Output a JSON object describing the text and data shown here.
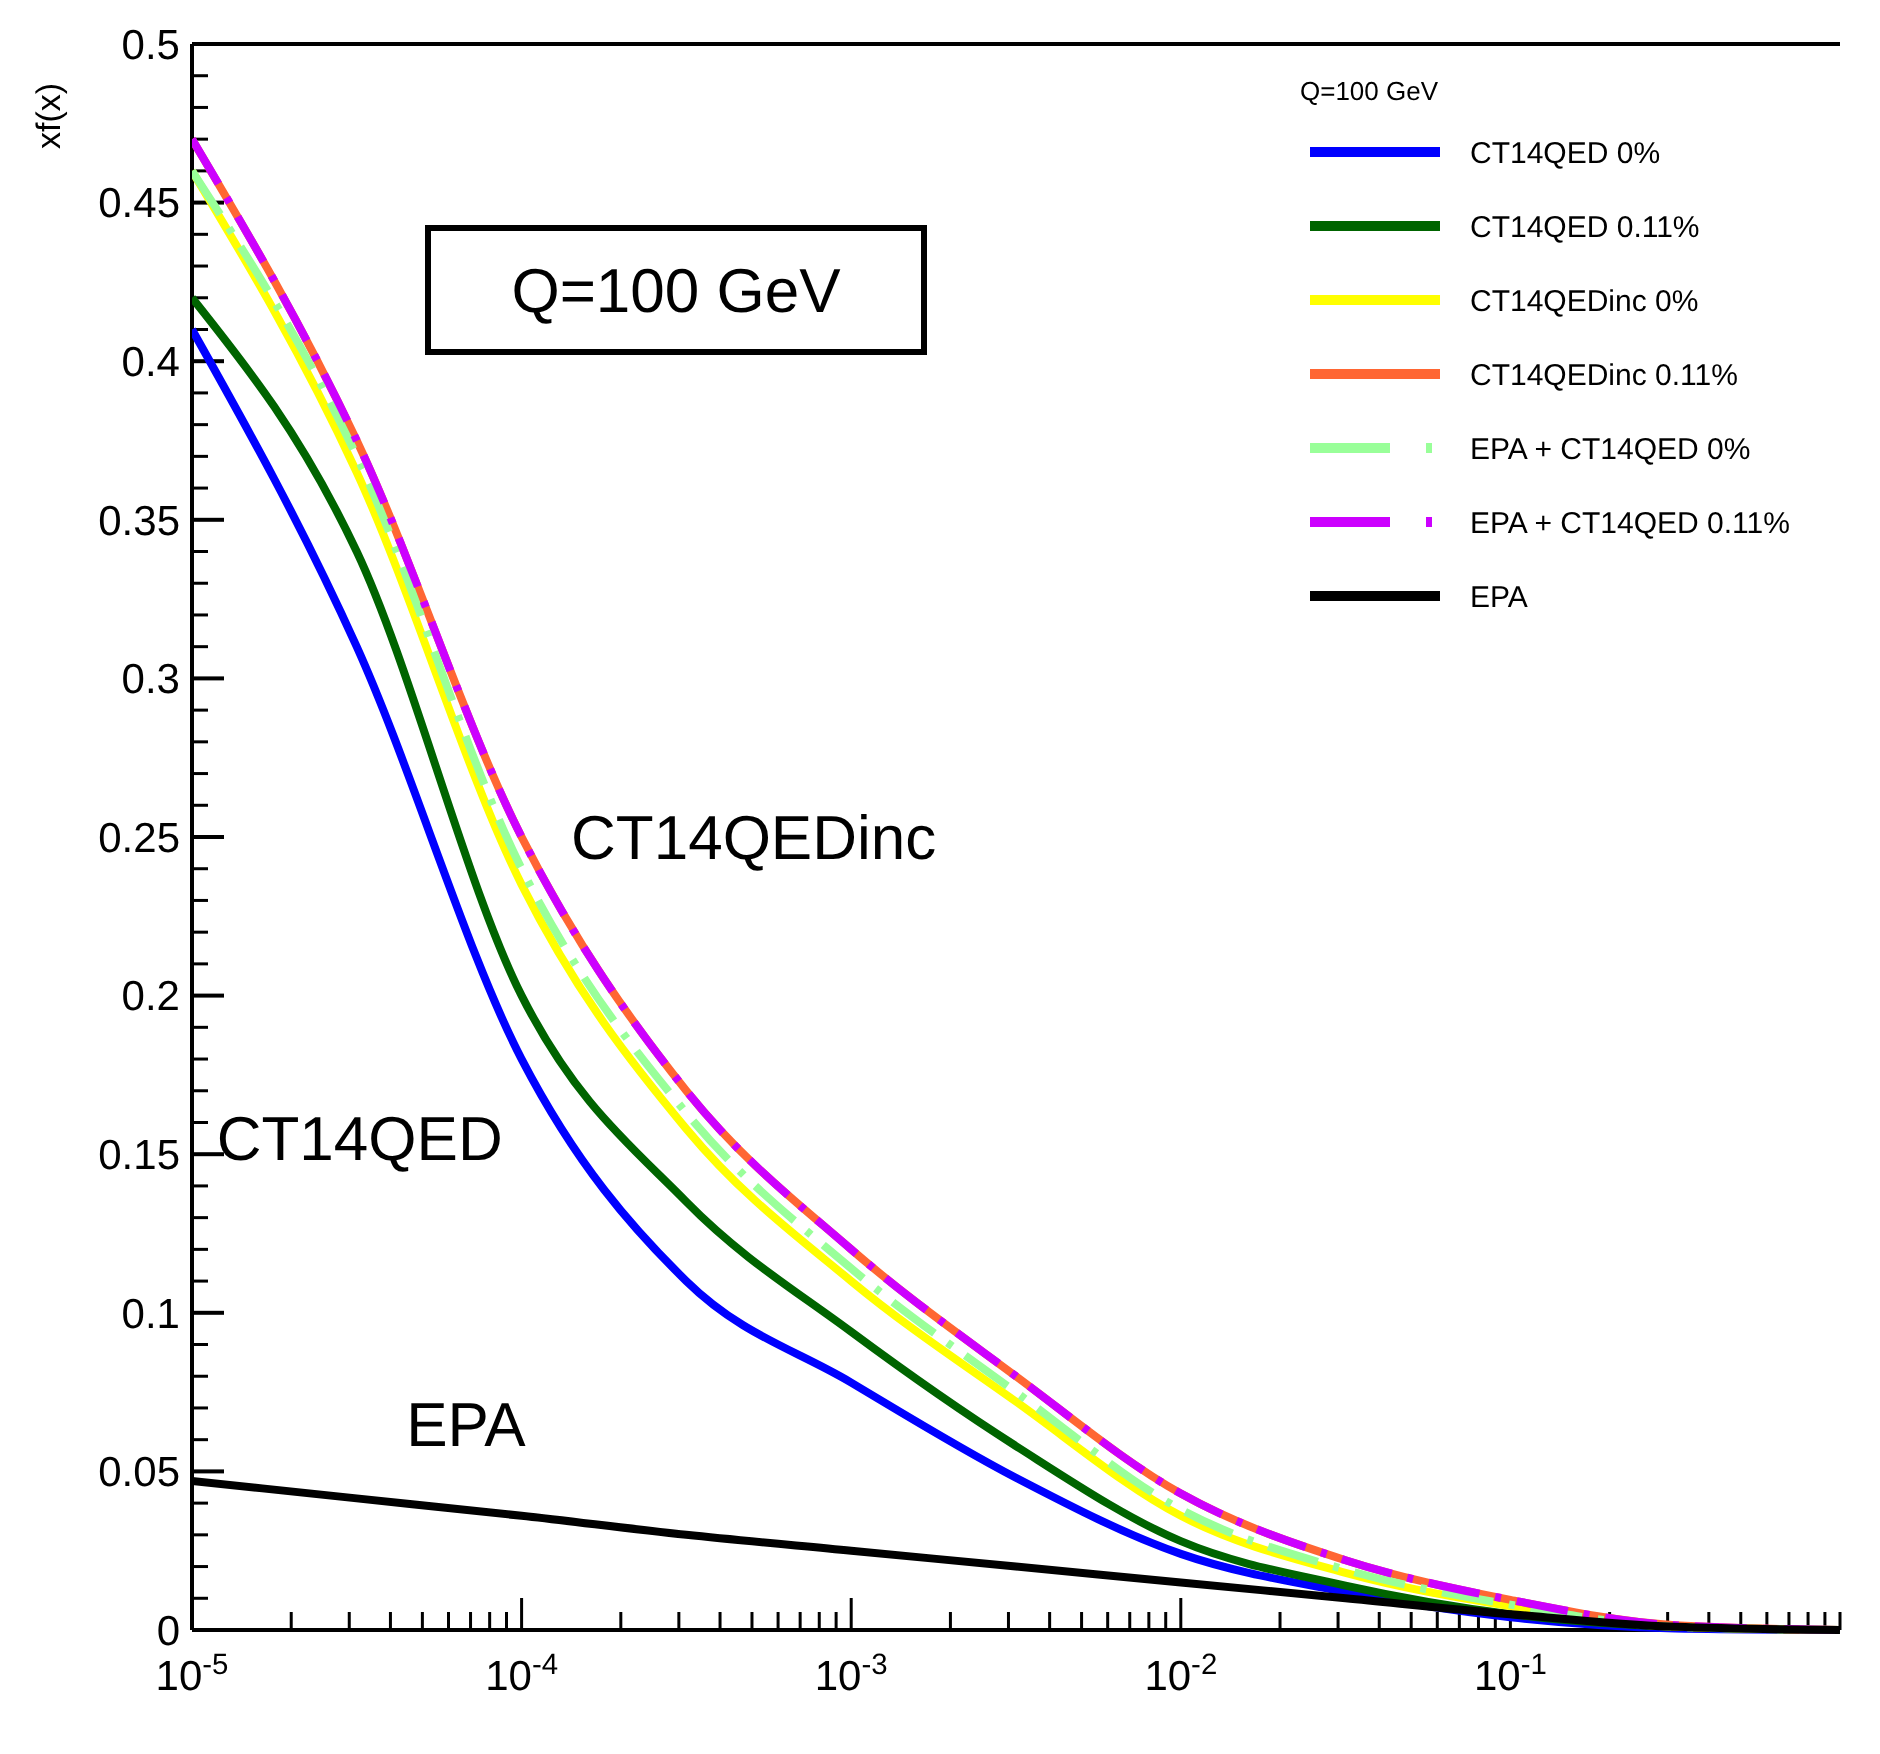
{
  "chart_data": {
    "type": "line",
    "ylabel": "xf(x)",
    "legend_title": "Q=100 GeV",
    "legend": "top right",
    "log": "x",
    "annotations": [
      "Q=100 GeV",
      "CT14QEDinc",
      "CT14QED",
      "EPA"
    ],
    "xlim": [
      1e-05,
      1
    ],
    "ylim": [
      0,
      0.5
    ],
    "xticks": [
      {
        "value": 1e-05,
        "label": "10$^{-5}$"
      },
      {
        "value": 0.0001,
        "label": "10$^{-4}$"
      },
      {
        "value": 0.001,
        "label": "10$^{-3}$"
      },
      {
        "value": 0.01,
        "label": "10$^{-2}$"
      },
      {
        "value": 0.1,
        "label": "10$^{-1}$"
      },
      {
        "value": 1,
        "label": null
      },
      {
        "value": 2e-05,
        "label": null
      },
      {
        "value": 3e-05,
        "label": null
      },
      {
        "value": 4e-05,
        "label": null
      },
      {
        "value": 5e-05,
        "label": null
      },
      {
        "value": 6e-05,
        "label": null
      },
      {
        "value": 7e-05,
        "label": null
      },
      {
        "value": 8e-05,
        "label": null
      },
      {
        "value": 9e-05,
        "label": null
      },
      {
        "value": 0.0002,
        "label": null
      },
      {
        "value": 0.0003,
        "label": null
      },
      {
        "value": 0.0004,
        "label": null
      },
      {
        "value": 0.0005,
        "label": null
      },
      {
        "value": 0.0006,
        "label": null
      },
      {
        "value": 0.0007,
        "label": null
      },
      {
        "value": 0.0008,
        "label": null
      },
      {
        "value": 0.0009,
        "label": null
      },
      {
        "value": 0.002,
        "label": null
      },
      {
        "value": 0.003,
        "label": null
      },
      {
        "value": 0.004,
        "label": null
      },
      {
        "value": 0.005,
        "label": null
      },
      {
        "value": 0.006,
        "label": null
      },
      {
        "value": 0.007,
        "label": null
      },
      {
        "value": 0.008,
        "label": null
      },
      {
        "value": 0.009,
        "label": null
      },
      {
        "value": 0.02,
        "label": null
      },
      {
        "value": 0.03,
        "label": null
      },
      {
        "value": 0.04,
        "label": null
      },
      {
        "value": 0.05,
        "label": null
      },
      {
        "value": 0.06,
        "label": null
      },
      {
        "value": 0.07,
        "label": null
      },
      {
        "value": 0.08,
        "label": null
      },
      {
        "value": 0.09,
        "label": null
      },
      {
        "value": 0.2,
        "label": null
      },
      {
        "value": 0.3,
        "label": null
      },
      {
        "value": 0.4,
        "label": null
      },
      {
        "value": 0.5,
        "label": null
      },
      {
        "value": 0.6,
        "label": null
      },
      {
        "value": 0.7,
        "label": null
      },
      {
        "value": 0.8,
        "label": null
      },
      {
        "value": 0.9,
        "label": null
      }
    ],
    "yticks": [
      0,
      0.05,
      0.1,
      0.15,
      0.2,
      0.25,
      0.3,
      0.35,
      0.4,
      0.45,
      0.5
    ],
    "x": [
      1e-05,
      3.16e-05,
      0.0001,
      0.000316,
      0.001,
      0.00316,
      0.01,
      0.0316,
      0.1,
      0.316,
      1
    ],
    "series": [
      {
        "name": "CT14QED 0%",
        "color": "#0000ff",
        "line_style": "solid",
        "values": [
          0.41,
          0.31,
          0.18,
          0.11,
          0.078,
          0.048,
          0.024,
          0.012,
          0.004,
          0.0005,
          0
        ]
      },
      {
        "name": "CT14QED 0.11%",
        "color": "#006400",
        "line_style": "solid",
        "values": [
          0.42,
          0.34,
          0.2,
          0.135,
          0.094,
          0.058,
          0.028,
          0.014,
          0.005,
          0.001,
          0
        ]
      },
      {
        "name": "CT14QEDinc 0%",
        "color": "#ffff00",
        "line_style": "solid",
        "values": [
          0.46,
          0.365,
          0.235,
          0.158,
          0.11,
          0.072,
          0.036,
          0.018,
          0.0075,
          0.001,
          0
        ]
      },
      {
        "name": "CT14QEDinc 0.11%",
        "color": "#ff6633",
        "line_style": "solid",
        "values": [
          0.47,
          0.375,
          0.25,
          0.17,
          0.12,
          0.08,
          0.043,
          0.022,
          0.0095,
          0.0015,
          0
        ]
      },
      {
        "name": "EPA + CT14QED 0%",
        "color": "#99ff99",
        "line_style": "dashed",
        "values": [
          0.46,
          0.37,
          0.24,
          0.163,
          0.114,
          0.075,
          0.038,
          0.019,
          0.008,
          0.001,
          0
        ]
      },
      {
        "name": "EPA + CT14QED 0.11%",
        "color": "#cc00ff",
        "line_style": "dashed",
        "values": [
          0.47,
          0.375,
          0.25,
          0.17,
          0.12,
          0.08,
          0.043,
          0.022,
          0.0095,
          0.0015,
          0
        ]
      },
      {
        "name": "EPA",
        "color": "#000000",
        "line_style": "solid",
        "values": [
          0.047,
          0.0415,
          0.036,
          0.03,
          0.025,
          0.02,
          0.015,
          0.01,
          0.005,
          0.001,
          0
        ]
      }
    ]
  }
}
